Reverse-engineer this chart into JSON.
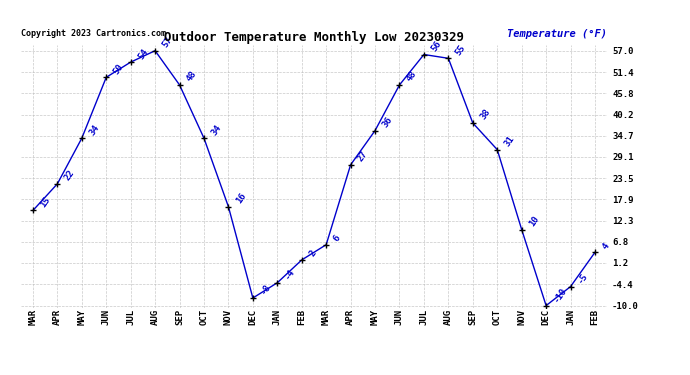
{
  "title": "Outdoor Temperature Monthly Low 20230329",
  "copyright": "Copyright 2023 Cartronics.com",
  "ylabel": "Temperature (°F)",
  "labels": [
    "MAR",
    "APR",
    "MAY",
    "JUN",
    "JUL",
    "AUG",
    "SEP",
    "OCT",
    "NOV",
    "DEC",
    "JAN",
    "FEB",
    "MAR",
    "APR",
    "MAY",
    "JUN",
    "JUL",
    "AUG",
    "SEP",
    "OCT",
    "NOV",
    "DEC",
    "JAN",
    "FEB"
  ],
  "values": [
    15,
    22,
    34,
    50,
    54,
    57,
    48,
    34,
    16,
    -8,
    -4,
    2,
    6,
    27,
    36,
    48,
    56,
    55,
    38,
    31,
    10,
    -10,
    -5,
    4
  ],
  "line_color": "#0000cc",
  "marker_color": "#000000",
  "label_color": "#0000cc",
  "bg_color": "#ffffff",
  "grid_color": "#bbbbbb",
  "title_color": "#000000",
  "copyright_color": "#000000",
  "ylabel_color": "#0000cc",
  "ymin": -10.0,
  "ymax": 57.0,
  "yticks": [
    57.0,
    51.4,
    45.8,
    40.2,
    34.7,
    29.1,
    23.5,
    17.9,
    12.3,
    6.8,
    1.2,
    -4.4,
    -10.0
  ]
}
